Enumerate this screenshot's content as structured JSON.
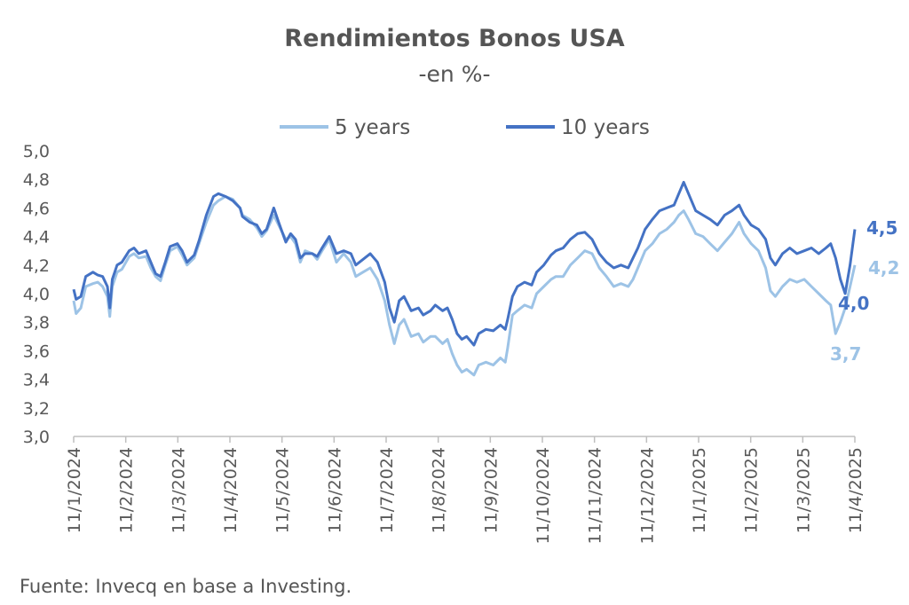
{
  "chart_data": {
    "type": "line",
    "title": "Rendimientos Bonos USA",
    "subtitle": "-en %-",
    "xlabel": "",
    "ylabel": "",
    "ylim": [
      3.0,
      5.0
    ],
    "yticks": [
      "3,0",
      "3,2",
      "3,4",
      "3,6",
      "3,8",
      "4,0",
      "4,2",
      "4,4",
      "4,6",
      "4,8",
      "5,0"
    ],
    "categories": [
      "11/1/2024",
      "11/2/2024",
      "11/3/2024",
      "11/4/2024",
      "11/5/2024",
      "11/6/2024",
      "11/7/2024",
      "11/8/2024",
      "11/9/2024",
      "11/10/2024",
      "11/11/2024",
      "11/12/2024",
      "11/1/2025",
      "11/2/2025",
      "11/3/2025",
      "11/4/2025"
    ],
    "grid": false,
    "legend_position": "top",
    "series": [
      {
        "name": "5 years",
        "color": "#9DC3E6",
        "end_label": "4,2",
        "min_label": "3,7",
        "points": [
          [
            0,
            3.95
          ],
          [
            0.1,
            3.86
          ],
          [
            0.3,
            3.9
          ],
          [
            0.5,
            4.05
          ],
          [
            0.8,
            4.07
          ],
          [
            1.0,
            4.08
          ],
          [
            1.2,
            4.05
          ],
          [
            1.4,
            3.98
          ],
          [
            1.5,
            3.84
          ],
          [
            1.6,
            4.05
          ],
          [
            1.8,
            4.15
          ],
          [
            2.0,
            4.17
          ],
          [
            2.3,
            4.26
          ],
          [
            2.5,
            4.28
          ],
          [
            2.7,
            4.25
          ],
          [
            3.0,
            4.26
          ],
          [
            3.2,
            4.18
          ],
          [
            3.4,
            4.12
          ],
          [
            3.6,
            4.09
          ],
          [
            3.8,
            4.2
          ],
          [
            4.0,
            4.3
          ],
          [
            4.3,
            4.33
          ],
          [
            4.5,
            4.27
          ],
          [
            4.7,
            4.2
          ],
          [
            5.0,
            4.25
          ],
          [
            5.2,
            4.35
          ],
          [
            5.5,
            4.5
          ],
          [
            5.8,
            4.62
          ],
          [
            6.0,
            4.65
          ],
          [
            6.3,
            4.68
          ],
          [
            6.6,
            4.66
          ],
          [
            6.9,
            4.6
          ],
          [
            7.0,
            4.55
          ],
          [
            7.3,
            4.52
          ],
          [
            7.6,
            4.46
          ],
          [
            7.8,
            4.4
          ],
          [
            8.0,
            4.44
          ],
          [
            8.3,
            4.55
          ],
          [
            8.5,
            4.48
          ],
          [
            8.8,
            4.38
          ],
          [
            9.0,
            4.4
          ],
          [
            9.2,
            4.35
          ],
          [
            9.4,
            4.22
          ],
          [
            9.6,
            4.3
          ],
          [
            9.9,
            4.28
          ],
          [
            10.1,
            4.24
          ],
          [
            10.3,
            4.3
          ],
          [
            10.6,
            4.38
          ],
          [
            10.9,
            4.22
          ],
          [
            11.2,
            4.28
          ],
          [
            11.5,
            4.22
          ],
          [
            11.7,
            4.12
          ],
          [
            12.0,
            4.15
          ],
          [
            12.3,
            4.18
          ],
          [
            12.6,
            4.1
          ],
          [
            12.9,
            3.95
          ],
          [
            13.1,
            3.78
          ],
          [
            13.3,
            3.65
          ],
          [
            13.5,
            3.78
          ],
          [
            13.7,
            3.82
          ],
          [
            14.0,
            3.7
          ],
          [
            14.3,
            3.72
          ],
          [
            14.5,
            3.66
          ],
          [
            14.8,
            3.7
          ],
          [
            15.0,
            3.7
          ],
          [
            15.3,
            3.65
          ],
          [
            15.5,
            3.68
          ],
          [
            15.7,
            3.58
          ],
          [
            15.9,
            3.5
          ],
          [
            16.1,
            3.45
          ],
          [
            16.3,
            3.47
          ],
          [
            16.6,
            3.43
          ],
          [
            16.8,
            3.5
          ],
          [
            17.1,
            3.52
          ],
          [
            17.4,
            3.5
          ],
          [
            17.7,
            3.55
          ],
          [
            17.9,
            3.52
          ],
          [
            18.0,
            3.62
          ],
          [
            18.2,
            3.85
          ],
          [
            18.4,
            3.88
          ],
          [
            18.7,
            3.92
          ],
          [
            19.0,
            3.9
          ],
          [
            19.2,
            4.0
          ],
          [
            19.5,
            4.05
          ],
          [
            19.8,
            4.1
          ],
          [
            20.0,
            4.12
          ],
          [
            20.3,
            4.12
          ],
          [
            20.6,
            4.2
          ],
          [
            20.9,
            4.25
          ],
          [
            21.2,
            4.3
          ],
          [
            21.5,
            4.28
          ],
          [
            21.8,
            4.18
          ],
          [
            22.1,
            4.12
          ],
          [
            22.4,
            4.05
          ],
          [
            22.7,
            4.07
          ],
          [
            23.0,
            4.05
          ],
          [
            23.2,
            4.1
          ],
          [
            23.4,
            4.18
          ],
          [
            23.7,
            4.3
          ],
          [
            24.0,
            4.35
          ],
          [
            24.3,
            4.42
          ],
          [
            24.6,
            4.45
          ],
          [
            24.9,
            4.5
          ],
          [
            25.1,
            4.55
          ],
          [
            25.3,
            4.58
          ],
          [
            25.5,
            4.52
          ],
          [
            25.8,
            4.42
          ],
          [
            26.1,
            4.4
          ],
          [
            26.4,
            4.35
          ],
          [
            26.7,
            4.3
          ],
          [
            27.0,
            4.36
          ],
          [
            27.3,
            4.42
          ],
          [
            27.6,
            4.5
          ],
          [
            27.8,
            4.42
          ],
          [
            28.1,
            4.35
          ],
          [
            28.4,
            4.3
          ],
          [
            28.7,
            4.18
          ],
          [
            28.9,
            4.02
          ],
          [
            29.1,
            3.98
          ],
          [
            29.4,
            4.05
          ],
          [
            29.7,
            4.1
          ],
          [
            30.0,
            4.08
          ],
          [
            30.3,
            4.1
          ],
          [
            30.6,
            4.05
          ],
          [
            30.9,
            4.0
          ],
          [
            31.2,
            3.95
          ],
          [
            31.4,
            3.92
          ],
          [
            31.6,
            3.72
          ],
          [
            31.8,
            3.8
          ],
          [
            32.0,
            3.9
          ],
          [
            32.2,
            4.05
          ],
          [
            32.4,
            4.2
          ]
        ]
      },
      {
        "name": "10 years",
        "color": "#4472C4",
        "end_label": "4,5",
        "min_label": "4,0",
        "points": [
          [
            0,
            4.03
          ],
          [
            0.1,
            3.96
          ],
          [
            0.3,
            3.98
          ],
          [
            0.5,
            4.12
          ],
          [
            0.8,
            4.15
          ],
          [
            1.0,
            4.13
          ],
          [
            1.2,
            4.12
          ],
          [
            1.4,
            4.05
          ],
          [
            1.5,
            3.9
          ],
          [
            1.6,
            4.1
          ],
          [
            1.8,
            4.2
          ],
          [
            2.0,
            4.22
          ],
          [
            2.3,
            4.3
          ],
          [
            2.5,
            4.32
          ],
          [
            2.7,
            4.28
          ],
          [
            3.0,
            4.3
          ],
          [
            3.2,
            4.22
          ],
          [
            3.4,
            4.14
          ],
          [
            3.6,
            4.12
          ],
          [
            3.8,
            4.22
          ],
          [
            4.0,
            4.33
          ],
          [
            4.3,
            4.35
          ],
          [
            4.5,
            4.3
          ],
          [
            4.7,
            4.22
          ],
          [
            5.0,
            4.27
          ],
          [
            5.2,
            4.37
          ],
          [
            5.5,
            4.55
          ],
          [
            5.8,
            4.68
          ],
          [
            6.0,
            4.7
          ],
          [
            6.3,
            4.68
          ],
          [
            6.6,
            4.65
          ],
          [
            6.9,
            4.6
          ],
          [
            7.0,
            4.54
          ],
          [
            7.3,
            4.5
          ],
          [
            7.6,
            4.48
          ],
          [
            7.8,
            4.42
          ],
          [
            8.0,
            4.45
          ],
          [
            8.3,
            4.6
          ],
          [
            8.5,
            4.5
          ],
          [
            8.8,
            4.36
          ],
          [
            9.0,
            4.42
          ],
          [
            9.2,
            4.38
          ],
          [
            9.4,
            4.25
          ],
          [
            9.6,
            4.28
          ],
          [
            9.9,
            4.28
          ],
          [
            10.1,
            4.26
          ],
          [
            10.3,
            4.32
          ],
          [
            10.6,
            4.4
          ],
          [
            10.9,
            4.28
          ],
          [
            11.2,
            4.3
          ],
          [
            11.5,
            4.28
          ],
          [
            11.7,
            4.2
          ],
          [
            12.0,
            4.24
          ],
          [
            12.3,
            4.28
          ],
          [
            12.6,
            4.22
          ],
          [
            12.9,
            4.08
          ],
          [
            13.1,
            3.9
          ],
          [
            13.3,
            3.8
          ],
          [
            13.5,
            3.95
          ],
          [
            13.7,
            3.98
          ],
          [
            14.0,
            3.88
          ],
          [
            14.3,
            3.9
          ],
          [
            14.5,
            3.85
          ],
          [
            14.8,
            3.88
          ],
          [
            15.0,
            3.92
          ],
          [
            15.3,
            3.88
          ],
          [
            15.5,
            3.9
          ],
          [
            15.7,
            3.82
          ],
          [
            15.9,
            3.72
          ],
          [
            16.1,
            3.68
          ],
          [
            16.3,
            3.7
          ],
          [
            16.6,
            3.64
          ],
          [
            16.8,
            3.72
          ],
          [
            17.1,
            3.75
          ],
          [
            17.4,
            3.74
          ],
          [
            17.7,
            3.78
          ],
          [
            17.9,
            3.75
          ],
          [
            18.0,
            3.82
          ],
          [
            18.2,
            3.98
          ],
          [
            18.4,
            4.05
          ],
          [
            18.7,
            4.08
          ],
          [
            19.0,
            4.06
          ],
          [
            19.2,
            4.15
          ],
          [
            19.5,
            4.2
          ],
          [
            19.8,
            4.27
          ],
          [
            20.0,
            4.3
          ],
          [
            20.3,
            4.32
          ],
          [
            20.6,
            4.38
          ],
          [
            20.9,
            4.42
          ],
          [
            21.2,
            4.43
          ],
          [
            21.5,
            4.38
          ],
          [
            21.8,
            4.28
          ],
          [
            22.1,
            4.22
          ],
          [
            22.4,
            4.18
          ],
          [
            22.7,
            4.2
          ],
          [
            23.0,
            4.18
          ],
          [
            23.2,
            4.25
          ],
          [
            23.4,
            4.32
          ],
          [
            23.7,
            4.45
          ],
          [
            24.0,
            4.52
          ],
          [
            24.3,
            4.58
          ],
          [
            24.6,
            4.6
          ],
          [
            24.9,
            4.62
          ],
          [
            25.1,
            4.7
          ],
          [
            25.3,
            4.78
          ],
          [
            25.5,
            4.7
          ],
          [
            25.8,
            4.58
          ],
          [
            26.1,
            4.55
          ],
          [
            26.4,
            4.52
          ],
          [
            26.7,
            4.48
          ],
          [
            27.0,
            4.55
          ],
          [
            27.3,
            4.58
          ],
          [
            27.6,
            4.62
          ],
          [
            27.8,
            4.55
          ],
          [
            28.1,
            4.48
          ],
          [
            28.4,
            4.45
          ],
          [
            28.7,
            4.38
          ],
          [
            28.9,
            4.25
          ],
          [
            29.1,
            4.2
          ],
          [
            29.4,
            4.28
          ],
          [
            29.7,
            4.32
          ],
          [
            30.0,
            4.28
          ],
          [
            30.3,
            4.3
          ],
          [
            30.6,
            4.32
          ],
          [
            30.9,
            4.28
          ],
          [
            31.2,
            4.32
          ],
          [
            31.4,
            4.35
          ],
          [
            31.6,
            4.25
          ],
          [
            31.8,
            4.1
          ],
          [
            32.0,
            4.0
          ],
          [
            32.2,
            4.2
          ],
          [
            32.4,
            4.45
          ]
        ]
      }
    ]
  },
  "source_text": "Fuente: Invecq en base a Investing."
}
